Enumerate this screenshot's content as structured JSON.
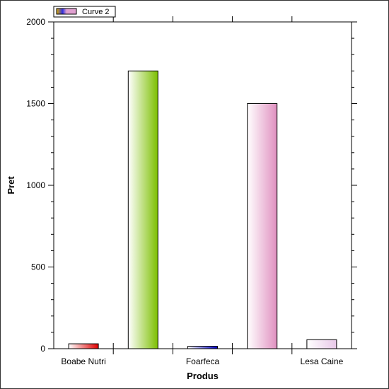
{
  "chart_data": {
    "type": "bar",
    "title": "",
    "xlabel": "Produs",
    "ylabel": "Pret",
    "ylim": [
      0,
      2000
    ],
    "yticks": [
      0,
      500,
      1000,
      1500,
      2000
    ],
    "ytick_labels": [
      "0",
      "500",
      "1000",
      "1500",
      "2000"
    ],
    "categories": [
      "Boabe Nutri",
      "",
      "Foarfeca",
      "",
      "Lesa Caine"
    ],
    "values": [
      30,
      1700,
      15,
      1500,
      55
    ],
    "bar_colors": [
      "#e00000",
      "#7cbf00",
      "#0000c8",
      "#e090c0",
      "#e8c8e8"
    ],
    "grid": false,
    "legend": {
      "placement": "top-left",
      "entries": [
        {
          "label": "Curve 2"
        }
      ]
    }
  }
}
